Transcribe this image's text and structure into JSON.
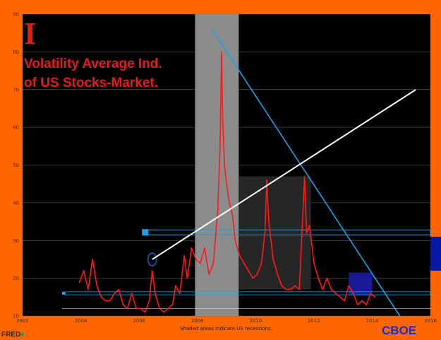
{
  "chart_data": {
    "type": "line",
    "source_logo": "FRED",
    "footnote": "Shaded areas indicate US recessions.",
    "annotations": {
      "mark": "I",
      "title_line1": "Volatility Average Ind.",
      "title_line2": "of US Stocks-Market.",
      "source": "CBOE"
    },
    "xlim": [
      2002,
      2016
    ],
    "ylim": [
      10,
      90
    ],
    "x_ticks": [
      2002,
      2004,
      2006,
      2008,
      2010,
      2012,
      2014,
      2016
    ],
    "y_ticks": [
      10,
      20,
      30,
      40,
      50,
      60,
      70,
      80,
      90
    ],
    "grid": true,
    "recession": [
      2007.92,
      2009.42
    ],
    "series": [
      {
        "color": "#ff1a1a",
        "x": [
          2003.95,
          2004.1,
          2004.25,
          2004.4,
          2004.55,
          2004.7,
          2004.85,
          2005.0,
          2005.15,
          2005.3,
          2005.45,
          2005.6,
          2005.75,
          2005.9,
          2006.05,
          2006.2,
          2006.35,
          2006.45,
          2006.55,
          2006.7,
          2006.85,
          2007.0,
          2007.15,
          2007.25,
          2007.4,
          2007.55,
          2007.65,
          2007.8,
          2007.95,
          2008.1,
          2008.25,
          2008.4,
          2008.55,
          2008.7,
          2008.78,
          2008.83,
          2008.87,
          2008.93,
          2009.0,
          2009.1,
          2009.2,
          2009.3,
          2009.45,
          2009.6,
          2009.75,
          2009.9,
          2010.05,
          2010.2,
          2010.32,
          2010.38,
          2010.45,
          2010.6,
          2010.75,
          2010.9,
          2011.05,
          2011.2,
          2011.35,
          2011.5,
          2011.62,
          2011.68,
          2011.75,
          2011.85,
          2012.0,
          2012.15,
          2012.3,
          2012.45,
          2012.6,
          2012.75,
          2012.9,
          2013.05,
          2013.2,
          2013.35,
          2013.5,
          2013.65,
          2013.8,
          2013.95,
          2014.1
        ],
        "y": [
          19,
          22,
          17,
          25,
          18,
          15,
          14,
          14,
          16,
          17,
          13,
          12,
          16,
          12,
          12,
          11,
          14,
          22,
          16,
          12,
          11,
          12,
          13,
          18,
          16,
          26,
          20,
          28,
          25,
          24,
          28,
          21,
          24,
          38,
          55,
          80,
          62,
          50,
          45,
          40,
          37,
          30,
          26,
          24,
          22,
          20,
          21,
          24,
          32,
          46,
          35,
          25,
          21,
          18,
          17,
          17,
          18,
          17,
          37,
          47,
          32,
          34,
          24,
          20,
          17,
          20,
          17,
          16,
          15,
          14,
          18,
          16,
          13,
          14,
          13,
          16,
          15
        ]
      }
    ],
    "overlays": {
      "blue_trend": {
        "from": [
          2008.5,
          86
        ],
        "to": [
          2014.95,
          10
        ],
        "color": "#1aa3e6"
      },
      "white_trend": {
        "from": [
          2006.45,
          25
        ],
        "to": [
          2015.5,
          70
        ],
        "color": "#ffffff"
      },
      "zone_dark_box": {
        "x": [
          2009.42,
          2011.9
        ],
        "y": [
          17,
          47
        ],
        "color": "#262626"
      },
      "zone_navy_box": {
        "x": [
          2013.2,
          2014.0
        ],
        "y": [
          15.5,
          21.5
        ],
        "color": "#1a1a99"
      },
      "level_band_32": {
        "x_start": 2006.1,
        "y_low": 31.5,
        "y_high": 33.0,
        "color": "#1aa3e6"
      },
      "level_band_16": {
        "x_start": 2003.35,
        "y_low": 15.6,
        "y_high": 16.4,
        "color": "#1aa3e6"
      },
      "level_line_12": {
        "x_start": 2003.35,
        "y": 12,
        "color": "#cccccc"
      },
      "outer_navy_block": {
        "y_low": 22,
        "y_high": 31,
        "color": "#0a1aa0"
      },
      "circle_marker": {
        "x": 2006.45,
        "y": 25,
        "color": "#1a4f9a"
      }
    }
  }
}
